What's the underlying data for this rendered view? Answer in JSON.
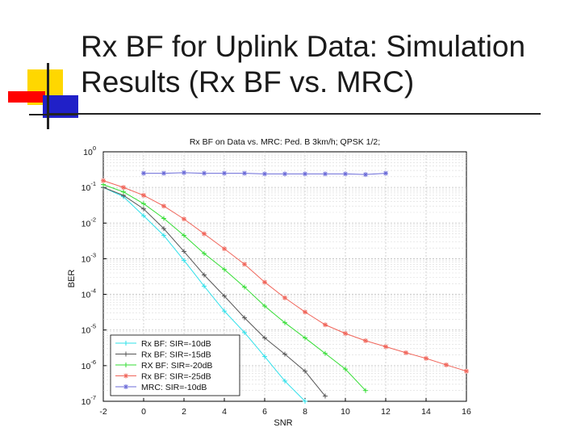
{
  "slide": {
    "title_line1": "Rx BF for Uplink Data: Simulation",
    "title_line2": "Results (Rx BF vs. MRC)"
  },
  "colors": {
    "logo_yellow": "#ffd700",
    "logo_red": "#ff0000",
    "logo_blue": "#2020c8",
    "rule": "#222222"
  },
  "chart_data": {
    "type": "line",
    "title": "Rx BF on Data vs. MRC: Ped. B 3km/h; QPSK 1/2;",
    "xlabel": "SNR",
    "ylabel": "BER",
    "xlim": [
      -2,
      16
    ],
    "ylim": [
      1e-07,
      1
    ],
    "yscale": "log",
    "grid": true,
    "legend_position": "bottom-left",
    "x_ticks": [
      "-2",
      "0",
      "2",
      "4",
      "6",
      "8",
      "10",
      "12",
      "14",
      "16"
    ],
    "y_ticks": [
      {
        "base": "10",
        "exp": "0"
      },
      {
        "base": "10",
        "exp": "-1"
      },
      {
        "base": "10",
        "exp": "-2"
      },
      {
        "base": "10",
        "exp": "-3"
      },
      {
        "base": "10",
        "exp": "-4"
      },
      {
        "base": "10",
        "exp": "-5"
      },
      {
        "base": "10",
        "exp": "-6"
      },
      {
        "base": "10",
        "exp": "-7"
      }
    ],
    "series": [
      {
        "name": "Rx BF:  SIR=-10dB",
        "color": "#2fe0ea",
        "marker": "+",
        "x": [
          -2,
          -1,
          0,
          1,
          2,
          3,
          4,
          5,
          6,
          7,
          8
        ],
        "y": [
          0.1,
          0.055,
          0.016,
          0.0045,
          0.0009,
          0.00017,
          3.4e-05,
          8.5e-06,
          1.8e-06,
          3.7e-07,
          1e-07
        ]
      },
      {
        "name": "Rx BF:  SIR=-15dB",
        "color": "#555555",
        "marker": "+",
        "x": [
          -2,
          -1,
          0,
          1,
          2,
          3,
          4,
          5,
          6,
          7,
          8,
          9
        ],
        "y": [
          0.1,
          0.06,
          0.025,
          0.007,
          0.0016,
          0.00035,
          9e-05,
          2.2e-05,
          6e-06,
          2.1e-06,
          7e-07,
          1.4e-07
        ]
      },
      {
        "name": "RX BF:  SIR=-20dB",
        "color": "#33dd33",
        "marker": "+",
        "x": [
          -2,
          -1,
          0,
          1,
          2,
          3,
          4,
          5,
          6,
          7,
          8,
          9,
          10,
          11
        ],
        "y": [
          0.12,
          0.075,
          0.035,
          0.0135,
          0.0045,
          0.0014,
          0.0005,
          0.00016,
          4.7e-05,
          1.6e-05,
          6e-06,
          2.2e-06,
          8e-07,
          2e-07
        ]
      },
      {
        "name": "Rx BF:  SIR=-25dB",
        "color": "#f0655a",
        "marker": "*",
        "x": [
          -2,
          -1,
          0,
          1,
          2,
          3,
          4,
          5,
          6,
          7,
          8,
          9,
          10,
          11,
          12,
          13,
          14,
          15,
          16
        ],
        "y": [
          0.155,
          0.1,
          0.06,
          0.03,
          0.013,
          0.005,
          0.0019,
          0.0007,
          0.00022,
          8e-05,
          3.2e-05,
          1.4e-05,
          8e-06,
          5e-06,
          3.4e-06,
          2.3e-06,
          1.6e-06,
          1.05e-06,
          7e-07
        ]
      },
      {
        "name": "MRC:     SIR=-10dB",
        "color": "#6b6bd8",
        "marker": "*",
        "x": [
          0,
          1,
          2,
          3,
          4,
          5,
          6,
          7,
          8,
          9,
          10,
          11,
          12
        ],
        "y": [
          0.25,
          0.25,
          0.26,
          0.25,
          0.25,
          0.25,
          0.24,
          0.24,
          0.24,
          0.24,
          0.24,
          0.23,
          0.25
        ]
      }
    ]
  }
}
